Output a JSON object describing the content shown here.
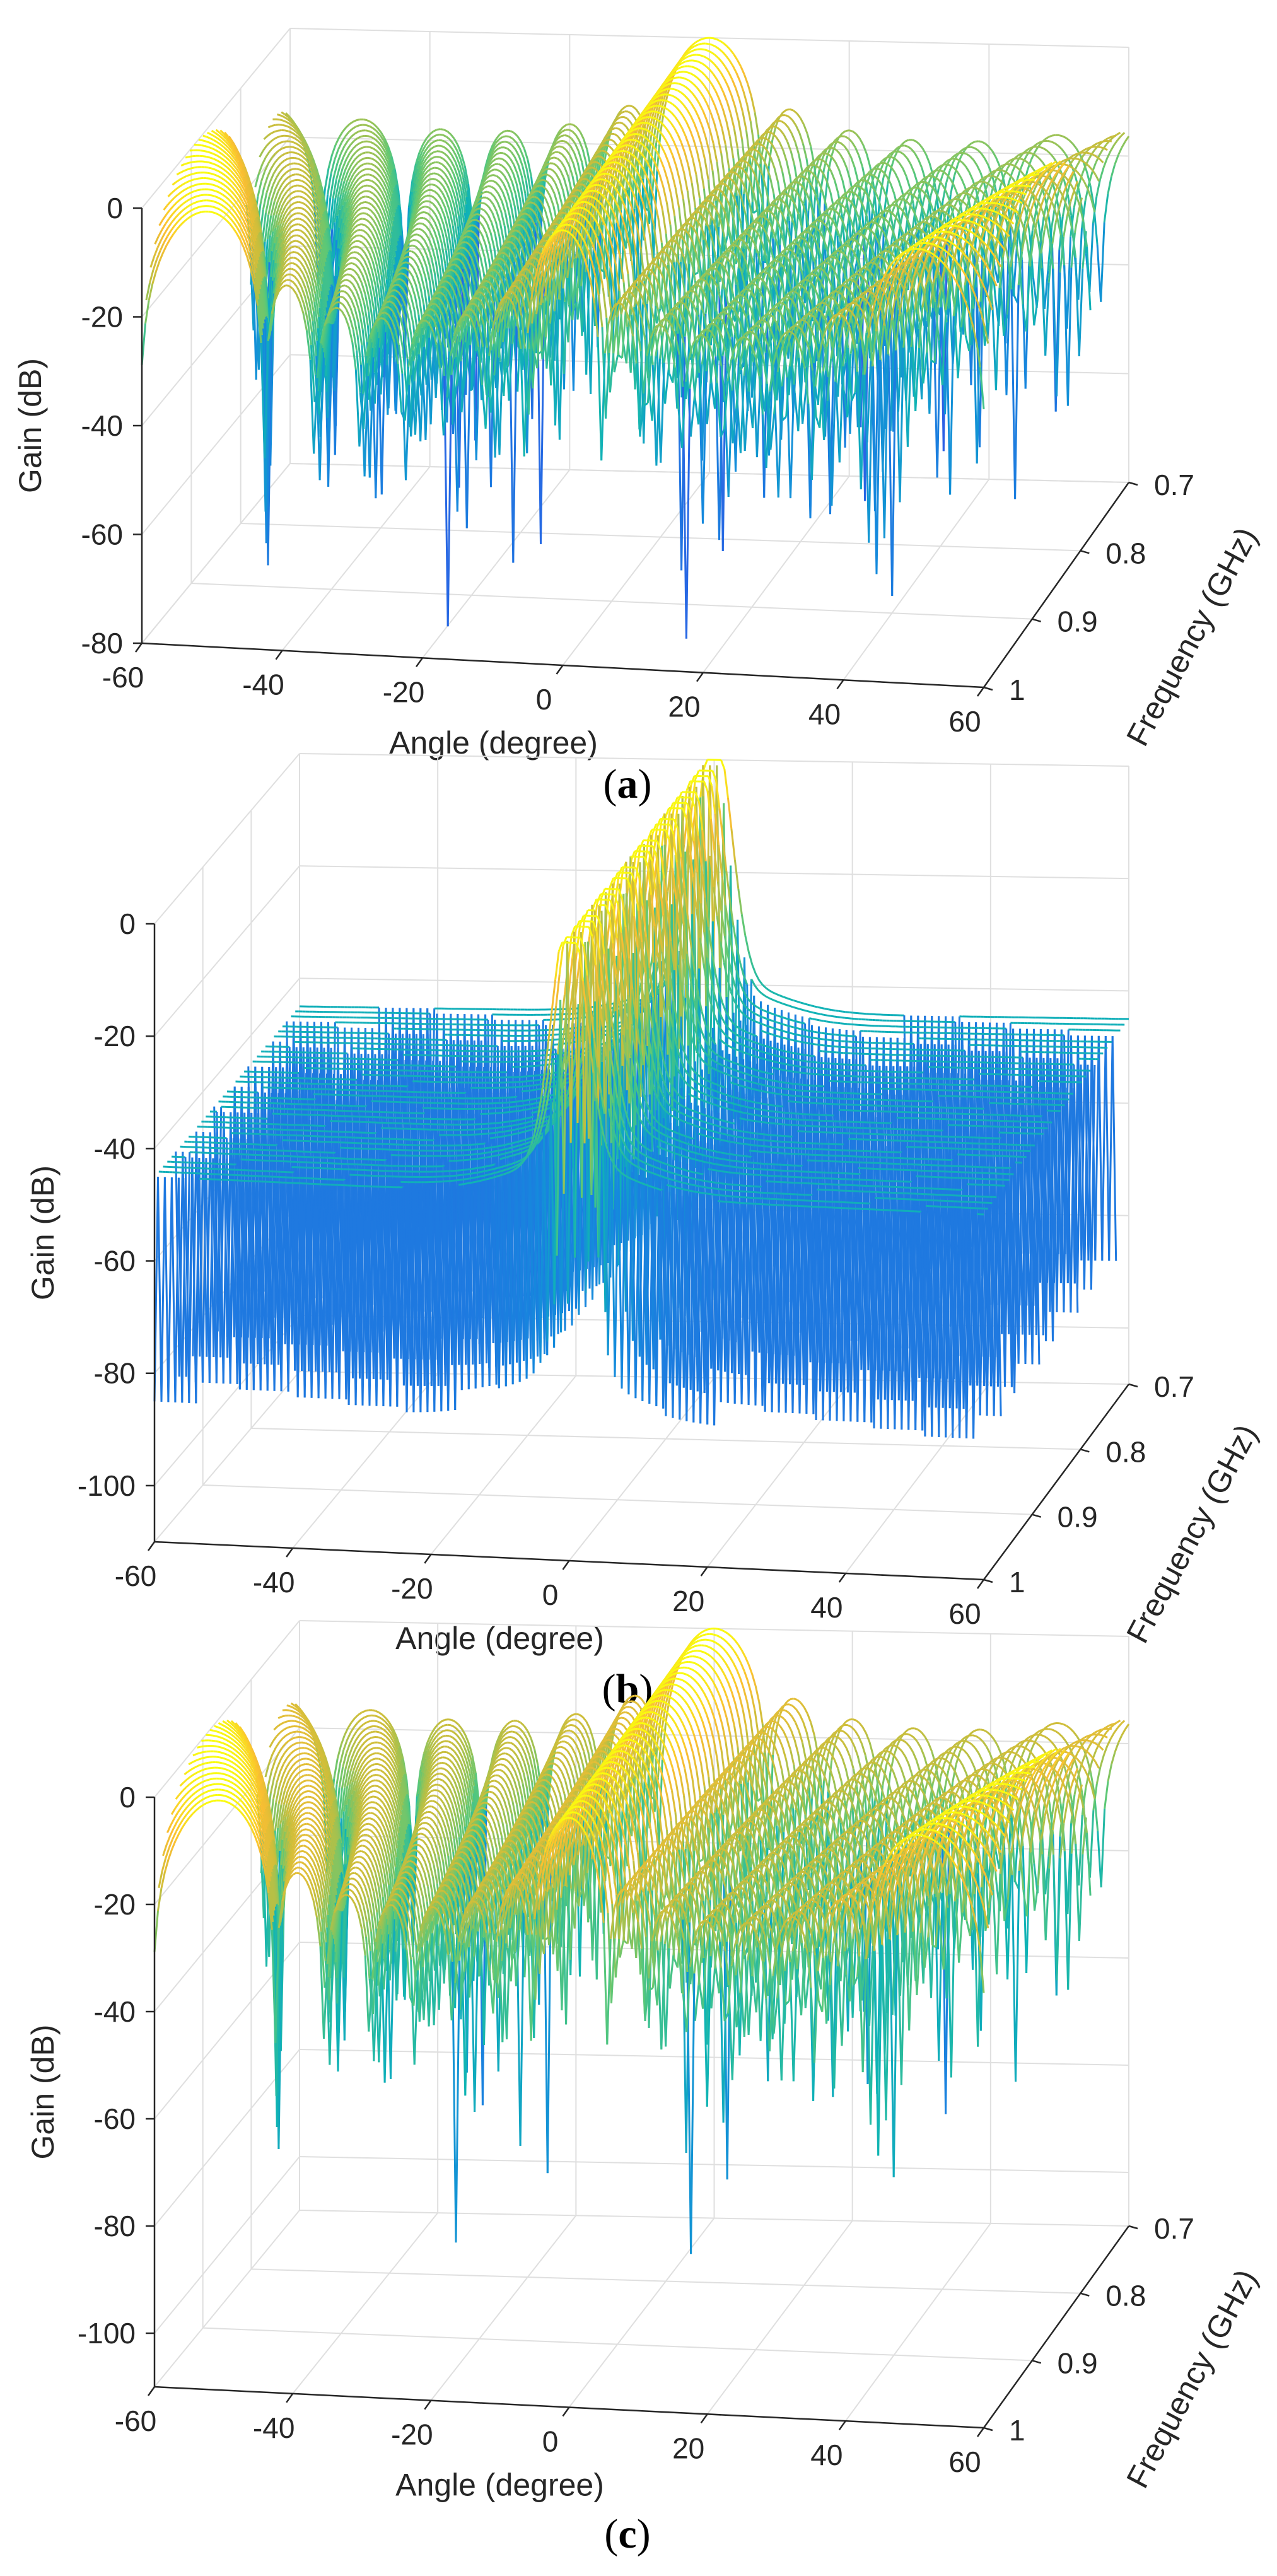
{
  "chart_data": [
    {
      "type": "surface",
      "panel": "(a)",
      "caption_letter": "a",
      "xlabel": "Angle (degree)",
      "ylabel": "Frequency (GHz)",
      "zlabel": "Gain (dB)",
      "x_ticks": [
        "-60",
        "-40",
        "-20",
        "0",
        "20",
        "40",
        "60"
      ],
      "y_ticks": [
        "0.7",
        "0.8",
        "0.9",
        "1"
      ],
      "z_ticks": [
        "0",
        "-20",
        "-40",
        "-60",
        "-80"
      ],
      "xlim": [
        -60,
        60
      ],
      "ylim": [
        0.7,
        1.0
      ],
      "zlim": [
        -80,
        0
      ],
      "grid": true,
      "colormap": "parula",
      "description_values": {
        "main_lobe_center_deg": 0,
        "main_lobe_peak_db": 0,
        "sidelobe_level_db": -6,
        "edge_level_db": -20,
        "null_depth_db": -75
      }
    },
    {
      "type": "surface",
      "panel": "(b)",
      "caption_letter": "b",
      "xlabel": "Angle (degree)",
      "ylabel": "Frequency (GHz)",
      "zlabel": "Gain (dB)",
      "x_ticks": [
        "-60",
        "-40",
        "-20",
        "0",
        "20",
        "40",
        "60"
      ],
      "y_ticks": [
        "0.7",
        "0.8",
        "0.9",
        "1"
      ],
      "z_ticks": [
        "0",
        "-20",
        "-40",
        "-60",
        "-80",
        "-100"
      ],
      "xlim": [
        -60,
        60
      ],
      "ylim": [
        0.7,
        1.0
      ],
      "zlim": [
        -110,
        0
      ],
      "grid": true,
      "colormap": "parula",
      "description_values": {
        "main_lobe_center_deg": 0,
        "main_lobe_peak_db": 0,
        "floor_level_db": -45,
        "null_depth_db": -100
      }
    },
    {
      "type": "surface",
      "panel": "(c)",
      "caption_letter": "c",
      "xlabel": "Angle (degree)",
      "ylabel": "Frequency (GHz)",
      "zlabel": "Gain (dB)",
      "x_ticks": [
        "-60",
        "-40",
        "-20",
        "0",
        "20",
        "40",
        "60"
      ],
      "y_ticks": [
        "0.7",
        "0.8",
        "0.9",
        "1"
      ],
      "z_ticks": [
        "0",
        "-20",
        "-40",
        "-60",
        "-80",
        "-100"
      ],
      "xlim": [
        -60,
        60
      ],
      "ylim": [
        0.7,
        1.0
      ],
      "zlim": [
        -110,
        0
      ],
      "grid": true,
      "colormap": "parula",
      "description_values": {
        "main_lobe_center_deg": 0,
        "main_lobe_peak_db": 0,
        "sidelobe_level_db": -6,
        "edge_level_db": -20,
        "null_depth_db": -95
      }
    }
  ],
  "colors": {
    "axis": "#262626",
    "grid": "#dfdfdf",
    "parula_low": "#3e26a8",
    "parula_mid": "#2ab5a0",
    "parula_high": "#f9fb0e"
  }
}
